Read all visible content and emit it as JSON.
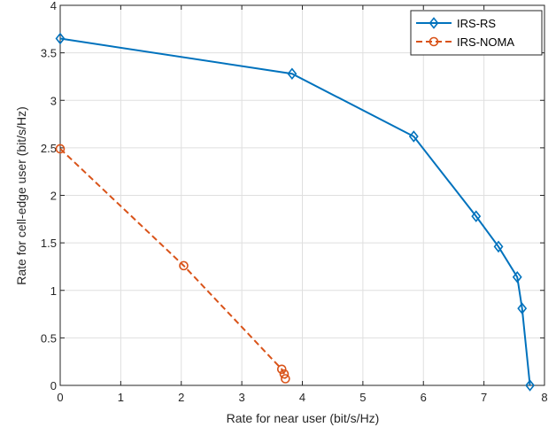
{
  "chart_data": {
    "type": "line",
    "title": "",
    "xlabel": "Rate for near user (bit/s/Hz)",
    "ylabel": "Rate for cell-edge user (bit/s/Hz)",
    "xlim": [
      0,
      8
    ],
    "ylim": [
      0,
      4
    ],
    "xticks": [
      0,
      1,
      2,
      3,
      4,
      5,
      6,
      7,
      8
    ],
    "xtick_labels": [
      "0",
      "1",
      "2",
      "3",
      "4",
      "5",
      "6",
      "7",
      "8"
    ],
    "yticks": [
      0,
      0.5,
      1,
      1.5,
      2,
      2.5,
      3,
      3.5,
      4
    ],
    "ytick_labels": [
      "0",
      "0.5",
      "1",
      "1.5",
      "2",
      "2.5",
      "3",
      "3.5",
      "4"
    ],
    "grid": true,
    "legend_position": "top-right",
    "series": [
      {
        "name": "IRS-RS",
        "color": "#0072BD",
        "line_style": "solid",
        "marker": "diamond",
        "x": [
          0,
          3.83,
          5.84,
          6.87,
          7.24,
          7.55,
          7.63,
          7.76
        ],
        "y": [
          3.65,
          3.28,
          2.62,
          1.78,
          1.46,
          1.14,
          0.81,
          0
        ]
      },
      {
        "name": "IRS-NOMA",
        "color": "#D95319",
        "line_style": "dashed",
        "marker": "circle",
        "x": [
          0,
          2.04,
          3.66,
          3.7,
          3.72
        ],
        "y": [
          2.49,
          1.26,
          0.17,
          0.12,
          0.07
        ]
      }
    ]
  }
}
